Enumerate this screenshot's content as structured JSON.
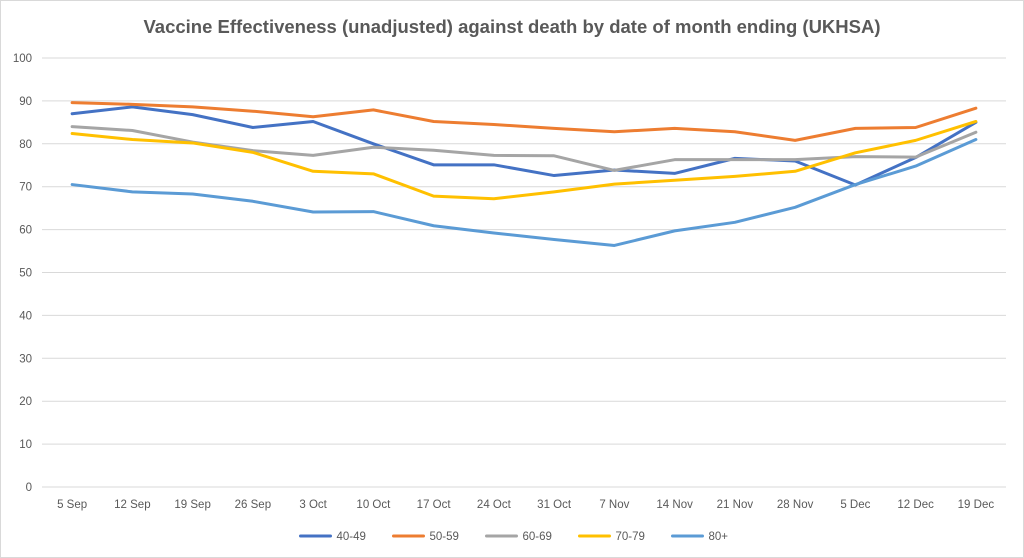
{
  "chart_data": {
    "type": "line",
    "title": "Vaccine  Effectiveness (unadjusted) against death by date of month ending (UKHSA)",
    "xlabel": "",
    "ylabel": "",
    "ylim": [
      0,
      100
    ],
    "y_ticks": [
      0,
      10,
      20,
      30,
      40,
      50,
      60,
      70,
      80,
      90,
      100
    ],
    "grid": true,
    "legend_position": "bottom",
    "x": [
      "5 Sep",
      "12 Sep",
      "19 Sep",
      "26 Sep",
      "3 Oct",
      "10 Oct",
      "17 Oct",
      "24 Oct",
      "31 Oct",
      "7 Nov",
      "14 Nov",
      "21 Nov",
      "28 Nov",
      "5 Dec",
      "12 Dec",
      "19 Dec"
    ],
    "series": [
      {
        "name": "40-49",
        "color": "#4472c4",
        "values": [
          87.0,
          88.6,
          86.8,
          83.8,
          85.2,
          80.0,
          75.1,
          75.1,
          72.6,
          73.9,
          73.1,
          76.6,
          76.0,
          70.4,
          76.8,
          85.0
        ]
      },
      {
        "name": "50-59",
        "color": "#ed7d31",
        "values": [
          89.6,
          89.2,
          88.6,
          87.6,
          86.3,
          87.9,
          85.2,
          84.5,
          83.6,
          82.8,
          83.6,
          82.8,
          80.8,
          83.6,
          83.8,
          88.3
        ]
      },
      {
        "name": "60-69",
        "color": "#a5a5a5",
        "values": [
          84.0,
          83.1,
          80.4,
          78.4,
          77.3,
          79.2,
          78.5,
          77.3,
          77.2,
          73.8,
          76.3,
          76.3,
          76.3,
          77.0,
          76.9,
          82.7
        ]
      },
      {
        "name": "70-79",
        "color": "#ffc000",
        "values": [
          82.4,
          81.0,
          80.2,
          78.0,
          73.6,
          73.0,
          67.8,
          67.2,
          68.8,
          70.6,
          71.5,
          72.4,
          73.6,
          77.9,
          80.8,
          85.2
        ]
      },
      {
        "name": "80+",
        "color": "#5b9bd5",
        "values": [
          70.5,
          68.8,
          68.3,
          66.6,
          64.1,
          64.2,
          60.9,
          59.2,
          57.7,
          56.3,
          59.7,
          61.7,
          65.2,
          70.5,
          74.8,
          81.0
        ]
      }
    ]
  }
}
